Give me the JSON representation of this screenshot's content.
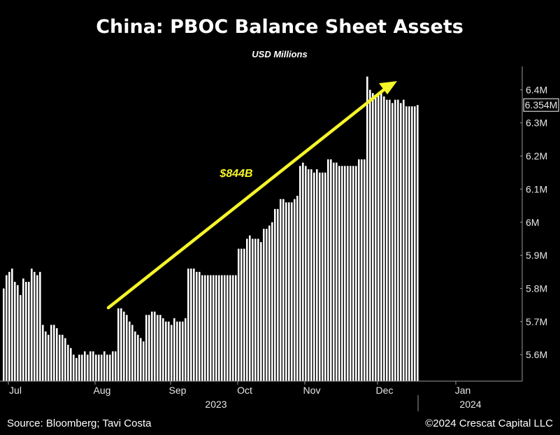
{
  "chart_data": {
    "type": "bar",
    "title": "China: PBOC Balance Sheet Assets",
    "subtitle": "USD Millions",
    "ylim": [
      5.52,
      6.46
    ],
    "y_ticks": [
      "5.6M",
      "5.7M",
      "5.8M",
      "5.9M",
      "6M",
      "6.1M",
      "6.2M",
      "6.3M",
      "6.4M"
    ],
    "y_tick_values": [
      5.6,
      5.7,
      5.8,
      5.9,
      6.0,
      6.1,
      6.2,
      6.3,
      6.4
    ],
    "last_value_label": "6.354M",
    "last_value": 6.354,
    "month_ticks": [
      {
        "label": "Jul",
        "index": 2
      },
      {
        "label": "Aug",
        "index": 33
      },
      {
        "label": "Sep",
        "index": 60
      },
      {
        "label": "Oct",
        "index": 84
      },
      {
        "label": "Nov",
        "index": 108
      },
      {
        "label": "Dec",
        "index": 134
      },
      {
        "label": "Jan",
        "index": 162
      }
    ],
    "year_labels": [
      {
        "label": "2023",
        "index": 75
      },
      {
        "label": "2024",
        "index": 166
      }
    ],
    "annotation": {
      "text": "$844B"
    },
    "values": [
      5.8,
      5.84,
      5.85,
      5.86,
      5.82,
      5.81,
      5.78,
      5.83,
      5.82,
      5.82,
      5.86,
      5.85,
      5.84,
      5.85,
      5.69,
      5.67,
      5.66,
      5.69,
      5.69,
      5.68,
      5.66,
      5.66,
      5.65,
      5.63,
      5.62,
      5.6,
      5.59,
      5.6,
      5.6,
      5.61,
      5.6,
      5.61,
      5.61,
      5.6,
      5.6,
      5.6,
      5.61,
      5.6,
      5.6,
      5.61,
      5.61,
      5.74,
      5.74,
      5.73,
      5.72,
      5.7,
      5.69,
      5.67,
      5.66,
      5.65,
      5.64,
      5.72,
      5.72,
      5.73,
      5.73,
      5.72,
      5.72,
      5.71,
      5.7,
      5.7,
      5.69,
      5.71,
      5.7,
      5.7,
      5.7,
      5.71,
      5.86,
      5.86,
      5.86,
      5.85,
      5.85,
      5.84,
      5.84,
      5.84,
      5.84,
      5.84,
      5.84,
      5.84,
      5.84,
      5.84,
      5.84,
      5.84,
      5.84,
      5.84,
      5.92,
      5.92,
      5.92,
      5.95,
      5.96,
      5.95,
      5.95,
      5.95,
      5.94,
      5.98,
      5.98,
      5.99,
      6.0,
      6.04,
      6.04,
      6.07,
      6.07,
      6.06,
      6.06,
      6.06,
      6.07,
      6.08,
      6.17,
      6.18,
      6.17,
      6.16,
      6.16,
      6.15,
      6.16,
      6.15,
      6.15,
      6.15,
      6.19,
      6.19,
      6.18,
      6.18,
      6.17,
      6.17,
      6.17,
      6.17,
      6.17,
      6.17,
      6.17,
      6.19,
      6.19,
      6.19,
      6.44,
      6.4,
      6.39,
      6.38,
      6.39,
      6.39,
      6.38,
      6.37,
      6.37,
      6.36,
      6.37,
      6.37,
      6.36,
      6.37,
      6.35,
      6.35,
      6.35,
      6.35,
      6.354
    ]
  },
  "footer": {
    "source": "Source: Bloomberg; Tavi Costa",
    "copyright": "©2024 Crescat Capital LLC"
  },
  "colors": {
    "bars": "#ffffff",
    "arrow": "#f5f52a",
    "background": "#000000"
  }
}
